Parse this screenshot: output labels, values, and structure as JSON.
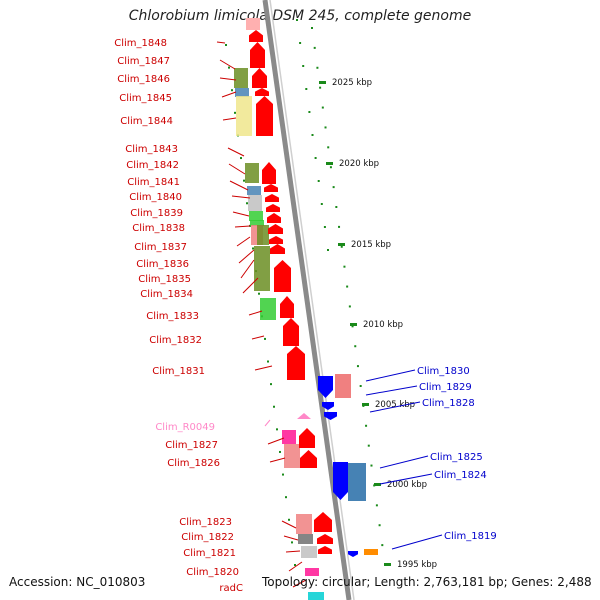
{
  "title": "Chlorobium limicola DSM 245, complete genome",
  "accession": "Accession: NC_010803",
  "topology": "Topology: circular; Length: 2,763,181 bp; Genes: 2,488",
  "colors": {
    "left_label": "#cc0000",
    "right_label": "#0000cc",
    "rna_label": "#ff88c8",
    "backbone": "#8a8a8a",
    "tick": "#1a8a1a"
  },
  "scale_labels": [
    "2025 kbp",
    "2020 kbp",
    "2015 kbp",
    "2010 kbp",
    "2005 kbp",
    "2000 kbp",
    "1995 kbp"
  ],
  "left_genes": [
    "Clim_1848",
    "Clim_1847",
    "Clim_1846",
    "Clim_1845",
    "Clim_1844",
    "Clim_1843",
    "Clim_1842",
    "Clim_1841",
    "Clim_1840",
    "Clim_1839",
    "Clim_1838",
    "Clim_1837",
    "Clim_1836",
    "Clim_1835",
    "Clim_1834",
    "Clim_1833",
    "Clim_1832",
    "Clim_1831",
    "Clim_R0049",
    "Clim_1827",
    "Clim_1826",
    "Clim_1823",
    "Clim_1822",
    "Clim_1821",
    "Clim_1820",
    "radC"
  ],
  "right_genes": [
    "Clim_1830",
    "Clim_1829",
    "Clim_1828",
    "Clim_1825",
    "Clim_1824",
    "Clim_1819"
  ]
}
